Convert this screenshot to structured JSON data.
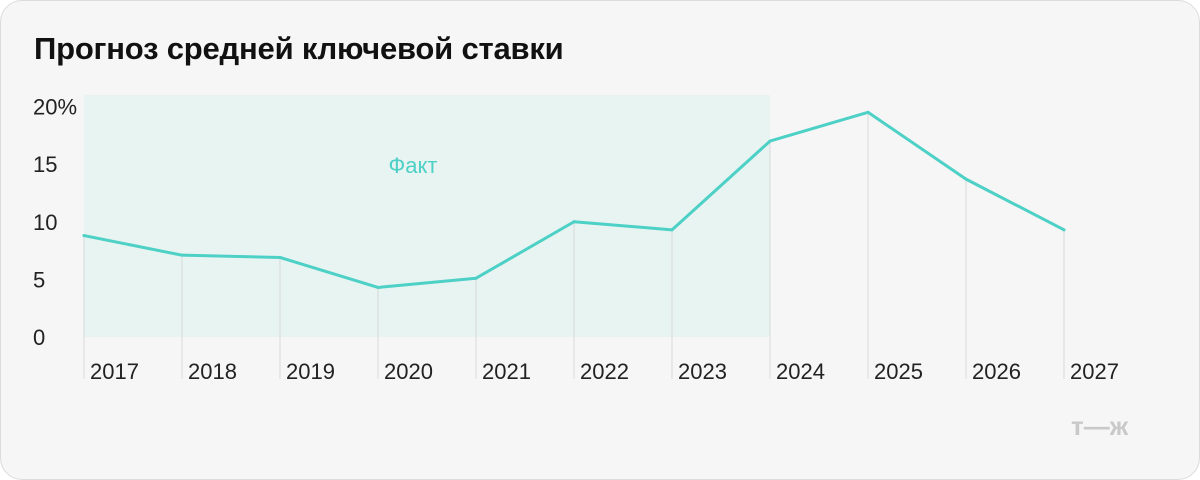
{
  "header": {
    "title": "Прогноз средней ключевой ставки"
  },
  "chart_data": {
    "type": "line",
    "title": "Прогноз средней ключевой ставки",
    "xlabel": "",
    "ylabel": "",
    "categories": [
      "2017",
      "2018",
      "2019",
      "2020",
      "2021",
      "2022",
      "2023",
      "2024",
      "2025",
      "2026",
      "2027"
    ],
    "series": [
      {
        "values": [
          8.8,
          7.1,
          6.9,
          4.3,
          5.1,
          10.0,
          9.3,
          17.0,
          19.5,
          13.7,
          9.3
        ]
      }
    ],
    "ylim": [
      0,
      21
    ],
    "y_ticks": [
      {
        "value": 0,
        "label": "0"
      },
      {
        "value": 5,
        "label": "5"
      },
      {
        "value": 10,
        "label": "10"
      },
      {
        "value": 15,
        "label": "15"
      },
      {
        "value": 20,
        "label": "20%"
      }
    ],
    "shaded_region": {
      "label": "Факт",
      "from": "2017",
      "to": "2024"
    },
    "grid": "vertical",
    "colors": {
      "line": "#4dd0c5",
      "fact_fill": "#e7f4f2",
      "grid": "#d9d9d9",
      "fact_label": "#4dd0c5"
    }
  },
  "branding": {
    "logo_text": "т—ж",
    "logo_color": "#c9c9c9"
  }
}
